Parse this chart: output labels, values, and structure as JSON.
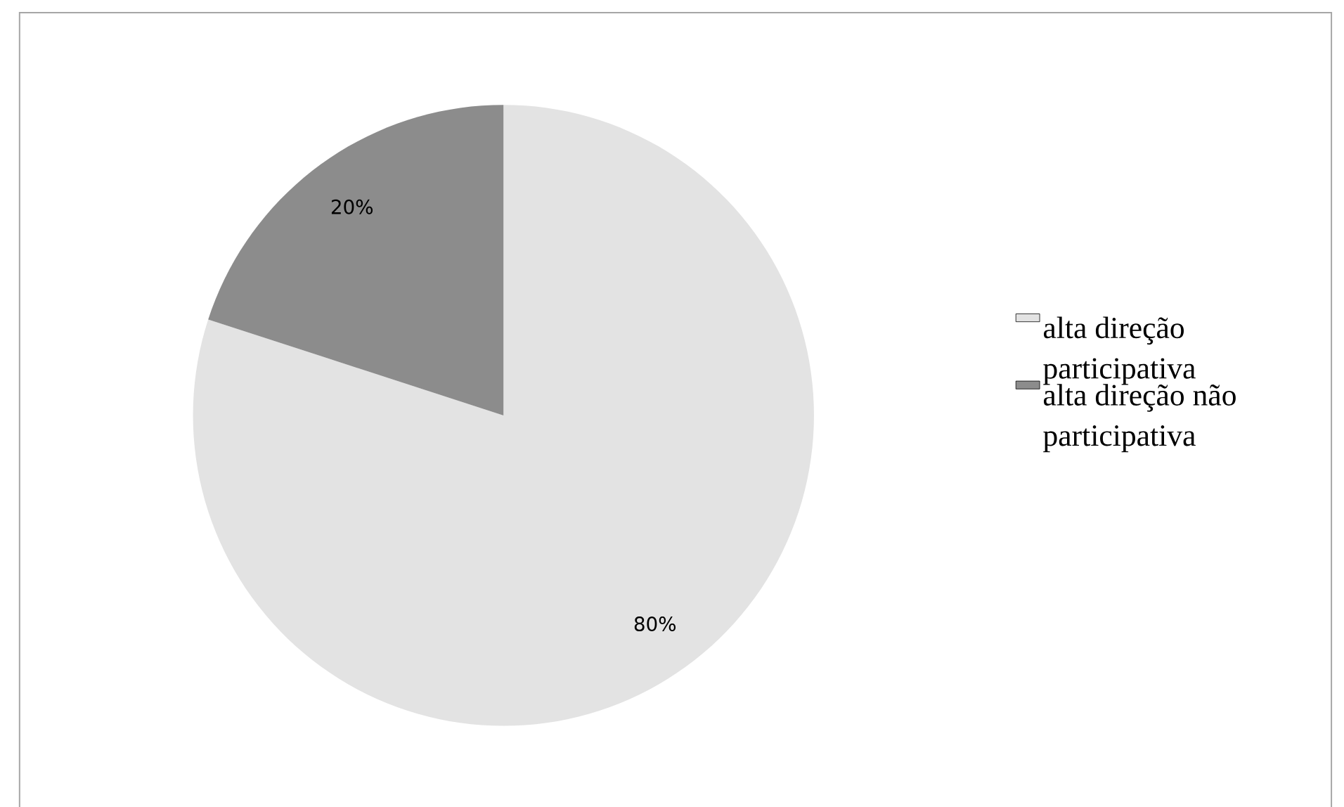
{
  "chart_data": {
    "type": "pie",
    "categories": [
      "alta direção participativa",
      "alta direção não participativa"
    ],
    "values": [
      80,
      20
    ],
    "colors": [
      "#e3e3e3",
      "#8c8c8c"
    ],
    "value_labels": [
      "80%",
      "20%"
    ],
    "legend": "right"
  }
}
